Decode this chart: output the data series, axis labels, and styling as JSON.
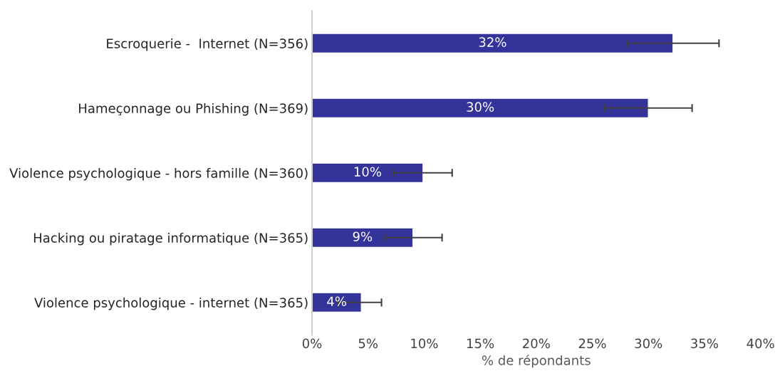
{
  "chart_data": {
    "type": "bar",
    "orientation": "horizontal",
    "xlabel": "% de répondants",
    "categories": [
      "Escroquerie -  Internet (N=356)",
      "Hameçonnage ou Phishing (N=369)",
      "Violence psychologique - hors famille (N=360)",
      "Hacking ou piratage informatique (N=365)",
      "Violence psychologique - internet (N=365)"
    ],
    "values": [
      32.2,
      30,
      9.9,
      9,
      4.4
    ],
    "value_labels": [
      "32%",
      "30%",
      "10%",
      "9%",
      "4%"
    ],
    "errors": [
      [
        28.1,
        36.3
      ],
      [
        26.1,
        33.9
      ],
      [
        7.3,
        12.5
      ],
      [
        6.5,
        11.6
      ],
      [
        2.3,
        6.2
      ]
    ],
    "color": "#333399",
    "xlim": [
      0,
      40
    ],
    "xticks": [
      {
        "value": 0,
        "label": "0%"
      },
      {
        "value": 5,
        "label": "5%"
      },
      {
        "value": 10,
        "label": "10%"
      },
      {
        "value": 15,
        "label": "15%"
      },
      {
        "value": 20,
        "label": "20%"
      },
      {
        "value": 25,
        "label": "25%"
      },
      {
        "value": 30,
        "label": "30%"
      },
      {
        "value": 35,
        "label": "35%"
      },
      {
        "value": 40,
        "label": "40%"
      }
    ],
    "grid": false
  }
}
